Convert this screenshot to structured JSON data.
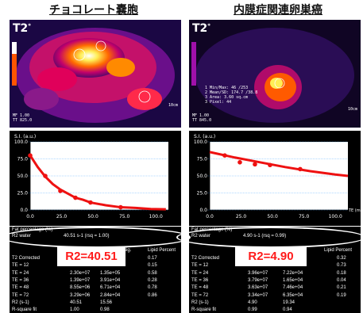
{
  "left": {
    "title": "チョコレート嚢胞",
    "mri_label": "T2",
    "mri_sup": "*",
    "mri_bottom_left": [
      "MF 1.00",
      "TT 825.0"
    ],
    "mri_scale": "10cm",
    "plot": {
      "ylabel": "S.I. (a.u.)",
      "yticks": [
        "100.0",
        "75.0",
        "50.0",
        "25.0",
        "0.0"
      ],
      "xticks": [
        "0.0",
        "25.0",
        "50.0",
        "75.0",
        "100.0"
      ]
    },
    "fat_label": "Fat percentage (%)",
    "r2water_label": "R2 water",
    "r2water_value": "40.51 s-1 (rsq = 1.00)",
    "r2_callout": "R2=40.51",
    "table_headers": [
      "Sig.",
      "Lipid Percent"
    ],
    "table_rows": [
      {
        "label": "T2 Corrected",
        "c1": "",
        "c2": "",
        "c3": "0.17"
      },
      {
        "label": "TE = 12",
        "c1": "",
        "c2": "",
        "c3": "0.15"
      },
      {
        "label": "TE = 24",
        "c1": "2.30e+07",
        "c2": "1.35e+05",
        "c3": "0.58"
      },
      {
        "label": "TE = 36",
        "c1": "1.39e+07",
        "c2": "3.91e+04",
        "c3": "0.28"
      },
      {
        "label": "TE = 48",
        "c1": "8.55e+06",
        "c2": "6.71e+04",
        "c3": "0.78"
      },
      {
        "label": "TE = 72",
        "c1": "3.29e+06",
        "c2": "2.84e+04",
        "c3": "0.86"
      },
      {
        "label": "R2 (s-1)",
        "c1": "40.51",
        "c2": "15.56",
        "c3": ""
      },
      {
        "label": "R-square fit",
        "c1": "1.00",
        "c2": "0.98",
        "c3": ""
      }
    ]
  },
  "right": {
    "title": "内膜症関連卵巣癌",
    "mri_label": "T2",
    "mri_sup": "*",
    "mri_info": [
      "1 Min/Max: 46 /253",
      "2 Mean/SD: 174.7 /38.8",
      "3 Area: 3.60 sq.cm",
      "3 Pixel: 44"
    ],
    "mri_bottom_left": [
      "MF 1.00",
      "TT 845.0"
    ],
    "mri_scale": "10cm",
    "plot": {
      "ylabel": "S.I. (a.u.)",
      "yticks": [
        "100.0",
        "75.0",
        "50.0",
        "25.0",
        "0.0"
      ],
      "xticks": [
        "0.0",
        "25.0",
        "50.0",
        "75.0",
        "100.0"
      ],
      "xaxis_label": "TE (ms)"
    },
    "fat_label": "Fat percentage (%)",
    "r2water_label": "R2 water",
    "r2water_value": "4.90 s-1 (rsq = 0.99)",
    "r2_callout": "R2=4.90",
    "table_headers": [
      "Lipid Percent"
    ],
    "table_rows": [
      {
        "label": "T2 Corrected",
        "c1": "",
        "c2": "",
        "c3": "0.32"
      },
      {
        "label": "TE = 12",
        "c1": "",
        "c2": "",
        "c3": "0.73"
      },
      {
        "label": "TE = 24",
        "c1": "3.96e+07",
        "c2": "7.22e+04",
        "c3": "0.18"
      },
      {
        "label": "TE = 36",
        "c1": "3.79e+07",
        "c2": "1.65e+04",
        "c3": "0.04"
      },
      {
        "label": "TE = 48",
        "c1": "3.63e+07",
        "c2": "7.46e+04",
        "c3": "0.21"
      },
      {
        "label": "TE = 72",
        "c1": "3.34e+07",
        "c2": "6.35e+04",
        "c3": "0.19"
      },
      {
        "label": "R2 (s-1)",
        "c1": "4.90",
        "c2": "19.34",
        "c3": ""
      },
      {
        "label": "R-square fit",
        "c1": "0.99",
        "c2": "0.94",
        "c3": ""
      }
    ]
  },
  "chart_data": [
    {
      "type": "scatter",
      "title": "",
      "ylabel": "S.I. (a.u.)",
      "xlabel": "",
      "xlim": [
        0,
        110
      ],
      "ylim": [
        0,
        100
      ],
      "series": [
        {
          "values": [
            [
              0,
              80
            ],
            [
              12,
              50
            ],
            [
              24,
              28
            ],
            [
              36,
              18
            ],
            [
              48,
              11
            ],
            [
              72,
              4
            ]
          ]
        },
        {
          "type": "line",
          "values": [
            [
              0,
              80
            ],
            [
              6,
              63
            ],
            [
              12,
              49
            ],
            [
              18,
              38
            ],
            [
              24,
              30
            ],
            [
              30,
              24
            ],
            [
              36,
              18
            ],
            [
              42,
              15
            ],
            [
              48,
              11
            ],
            [
              60,
              7
            ],
            [
              72,
              4
            ],
            [
              84,
              3
            ],
            [
              96,
              1.5
            ],
            [
              108,
              1
            ]
          ]
        }
      ]
    },
    {
      "type": "scatter",
      "title": "",
      "ylabel": "S.I. (a.u.)",
      "xlabel": "TE (ms)",
      "xlim": [
        0,
        110
      ],
      "ylim": [
        0,
        100
      ],
      "series": [
        {
          "values": [
            [
              12,
              80
            ],
            [
              24,
              70
            ],
            [
              36,
              67
            ],
            [
              48,
              66
            ],
            [
              72,
              60
            ]
          ]
        },
        {
          "type": "line",
          "values": [
            [
              0,
              85
            ],
            [
              20,
              77
            ],
            [
              40,
              70
            ],
            [
              60,
              63
            ],
            [
              80,
              57
            ],
            [
              100,
              52
            ],
            [
              110,
              50
            ]
          ]
        }
      ]
    }
  ]
}
